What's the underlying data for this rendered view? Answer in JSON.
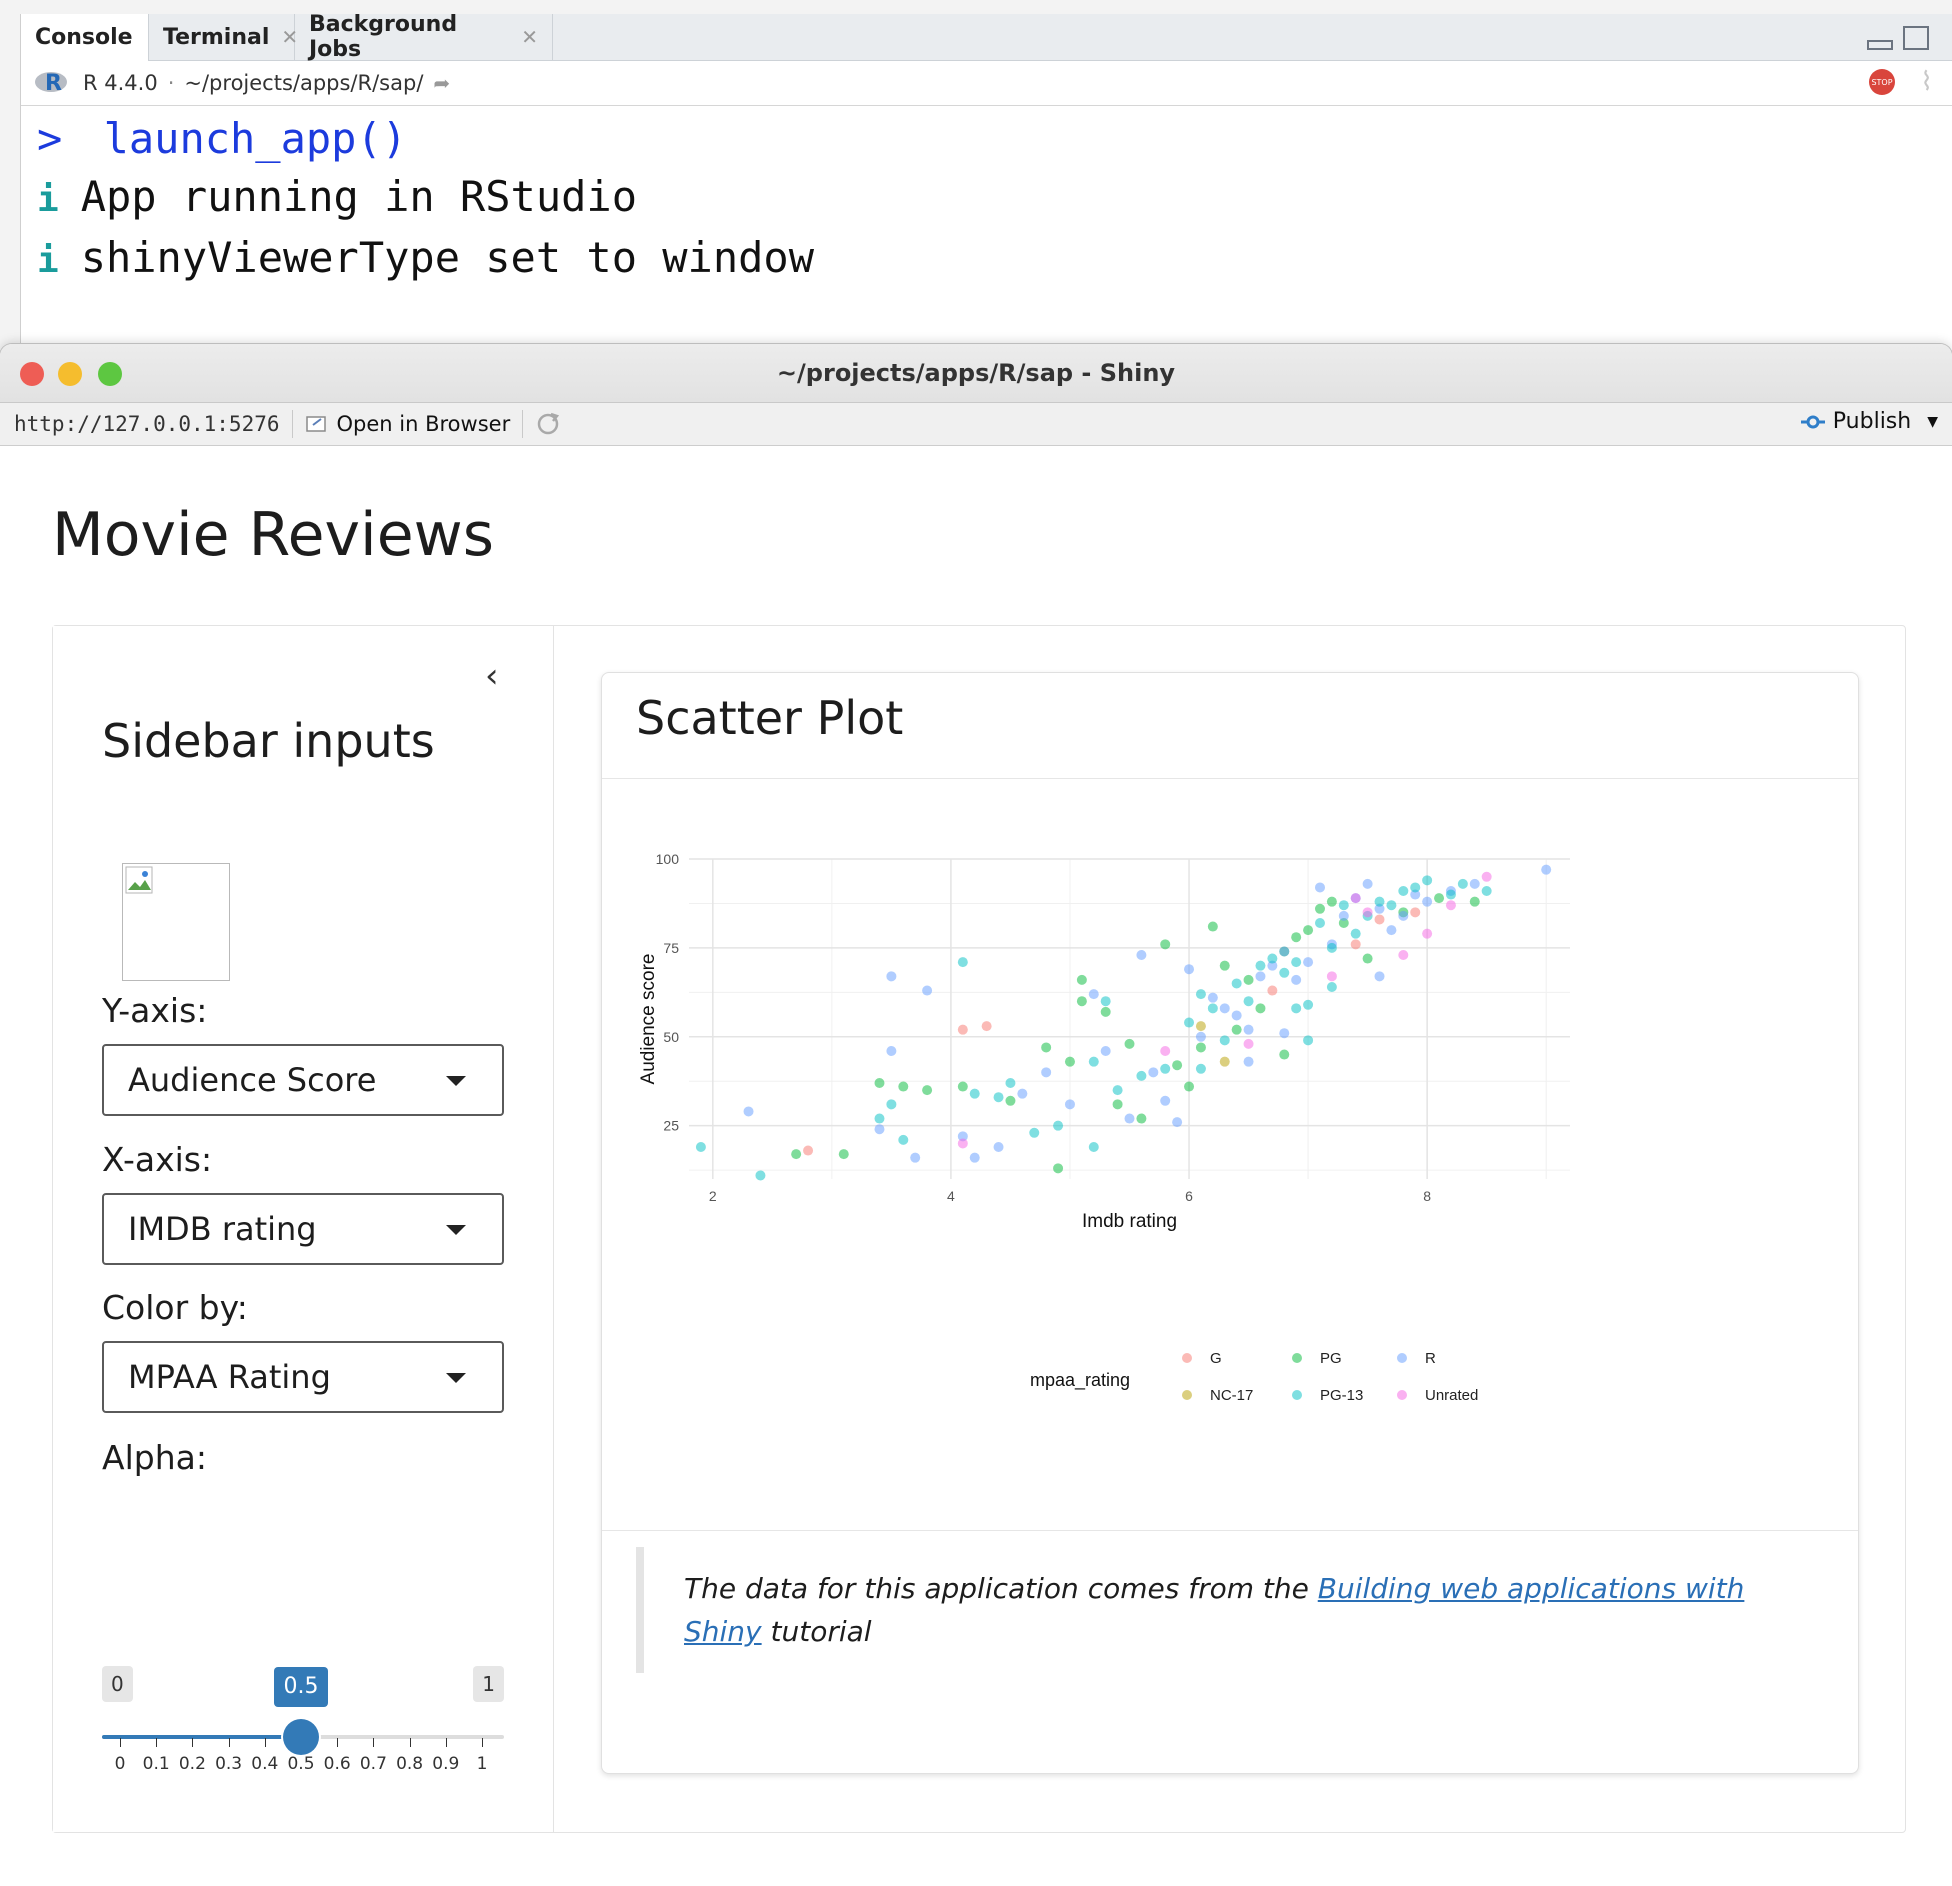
{
  "rstudio": {
    "tabs": [
      {
        "label": "Console",
        "closable": false,
        "active": true
      },
      {
        "label": "Terminal",
        "closable": true,
        "active": false
      },
      {
        "label": "Background Jobs",
        "closable": true,
        "active": false
      }
    ],
    "r_version": "R 4.4.0",
    "separator": "·",
    "working_dir": "~/projects/apps/R/sap/",
    "stop_label": "STOP",
    "console_lines": [
      {
        "kind": "command",
        "prompt": ">",
        "text": "launch_app()"
      },
      {
        "kind": "info",
        "prefix": "i",
        "text": "App running in RStudio"
      },
      {
        "kind": "info",
        "prefix": "i",
        "text": "shinyViewerType set to window"
      }
    ]
  },
  "shiny_window": {
    "title": "~/projects/apps/R/sap - Shiny",
    "url": "http://127.0.0.1:5276",
    "open_in_browser_label": "Open in Browser",
    "publish_label": "Publish"
  },
  "app": {
    "title": "Movie Reviews",
    "sidebar": {
      "heading": "Sidebar inputs",
      "y_axis": {
        "label": "Y-axis:",
        "value": "Audience Score"
      },
      "x_axis": {
        "label": "X-axis:",
        "value": "IMDB rating"
      },
      "color_by": {
        "label": "Color by:",
        "value": "MPAA Rating"
      },
      "alpha": {
        "label": "Alpha:",
        "min": "0",
        "max": "1",
        "value": "0.5",
        "value_fraction": 0.5,
        "ticks": [
          "0",
          "0.1",
          "0.2",
          "0.3",
          "0.4",
          "0.5",
          "0.6",
          "0.7",
          "0.8",
          "0.9",
          "1"
        ]
      }
    },
    "card": {
      "header": "Scatter Plot",
      "footer_prefix": "The data for this application comes from the ",
      "footer_link": "Building web applications with Shiny",
      "footer_suffix": " tutorial"
    }
  },
  "colors": {
    "G": "#F8766D",
    "NC-17": "#B79F00",
    "PG": "#00BA38",
    "PG-13": "#00BFC4",
    "R": "#619CFF",
    "Unrated": "#F564E3",
    "accent": "#337ab7"
  },
  "chart_data": {
    "type": "scatter",
    "xlabel": "Imdb rating",
    "ylabel": "Audience score",
    "xlim": [
      1.8,
      9.2
    ],
    "ylim": [
      10,
      100
    ],
    "xticks": [
      2,
      4,
      6,
      8
    ],
    "yticks": [
      25,
      50,
      75,
      100
    ],
    "grid": true,
    "alpha": 0.5,
    "legend": {
      "title": "mpaa_rating",
      "position": "bottom",
      "entries": [
        "G",
        "PG",
        "R",
        "NC-17",
        "PG-13",
        "Unrated"
      ]
    },
    "series": [
      {
        "name": "G",
        "points": [
          [
            2.8,
            18
          ],
          [
            4.1,
            52
          ],
          [
            4.3,
            53
          ],
          [
            7.6,
            83
          ],
          [
            7.9,
            85
          ],
          [
            7.4,
            76
          ],
          [
            6.7,
            63
          ]
        ]
      },
      {
        "name": "PG",
        "points": [
          [
            2.7,
            17
          ],
          [
            3.1,
            17
          ],
          [
            3.4,
            37
          ],
          [
            3.6,
            36
          ],
          [
            3.8,
            35
          ],
          [
            4.1,
            36
          ],
          [
            4.5,
            32
          ],
          [
            4.8,
            47
          ],
          [
            4.9,
            13
          ],
          [
            5.1,
            66
          ],
          [
            5.1,
            60
          ],
          [
            5.3,
            57
          ],
          [
            5.5,
            48
          ],
          [
            5.6,
            27
          ],
          [
            5.8,
            76
          ],
          [
            5.9,
            42
          ],
          [
            6.1,
            47
          ],
          [
            6.2,
            81
          ],
          [
            6.3,
            70
          ],
          [
            6.5,
            66
          ],
          [
            6.6,
            58
          ],
          [
            6.8,
            74
          ],
          [
            6.9,
            78
          ],
          [
            7.0,
            80
          ],
          [
            7.1,
            86
          ],
          [
            7.3,
            82
          ],
          [
            7.5,
            72
          ],
          [
            7.8,
            85
          ],
          [
            8.1,
            89
          ],
          [
            8.4,
            88
          ],
          [
            6.4,
            52
          ],
          [
            6.0,
            36
          ],
          [
            5.4,
            31
          ],
          [
            5.0,
            43
          ],
          [
            6.8,
            45
          ],
          [
            7.2,
            88
          ]
        ]
      },
      {
        "name": "R",
        "points": [
          [
            2.3,
            29
          ],
          [
            3.4,
            24
          ],
          [
            3.5,
            67
          ],
          [
            3.5,
            46
          ],
          [
            3.7,
            16
          ],
          [
            3.8,
            63
          ],
          [
            4.1,
            22
          ],
          [
            4.2,
            16
          ],
          [
            4.4,
            19
          ],
          [
            4.6,
            34
          ],
          [
            4.8,
            40
          ],
          [
            5.0,
            31
          ],
          [
            5.2,
            62
          ],
          [
            5.3,
            46
          ],
          [
            5.5,
            27
          ],
          [
            5.6,
            73
          ],
          [
            5.7,
            40
          ],
          [
            5.8,
            32
          ],
          [
            6.0,
            69
          ],
          [
            6.1,
            50
          ],
          [
            6.2,
            61
          ],
          [
            6.3,
            58
          ],
          [
            6.4,
            56
          ],
          [
            6.5,
            52
          ],
          [
            6.6,
            67
          ],
          [
            6.7,
            70
          ],
          [
            6.8,
            74
          ],
          [
            6.9,
            66
          ],
          [
            7.0,
            71
          ],
          [
            7.1,
            92
          ],
          [
            7.2,
            76
          ],
          [
            7.3,
            84
          ],
          [
            7.4,
            89
          ],
          [
            7.5,
            93
          ],
          [
            7.6,
            86
          ],
          [
            7.7,
            80
          ],
          [
            7.8,
            84
          ],
          [
            7.9,
            90
          ],
          [
            8.0,
            88
          ],
          [
            8.2,
            91
          ],
          [
            8.4,
            93
          ],
          [
            9.0,
            97
          ],
          [
            7.6,
            67
          ],
          [
            5.9,
            26
          ],
          [
            6.5,
            43
          ],
          [
            6.8,
            51
          ]
        ]
      },
      {
        "name": "NC-17",
        "points": [
          [
            6.1,
            53
          ],
          [
            6.3,
            43
          ]
        ]
      },
      {
        "name": "PG-13",
        "points": [
          [
            1.9,
            19
          ],
          [
            2.4,
            11
          ],
          [
            3.5,
            31
          ],
          [
            3.4,
            27
          ],
          [
            3.6,
            21
          ],
          [
            4.1,
            71
          ],
          [
            4.2,
            34
          ],
          [
            4.4,
            33
          ],
          [
            4.5,
            37
          ],
          [
            4.7,
            23
          ],
          [
            4.9,
            25
          ],
          [
            5.2,
            43
          ],
          [
            5.3,
            60
          ],
          [
            5.4,
            35
          ],
          [
            5.6,
            39
          ],
          [
            5.8,
            41
          ],
          [
            6.0,
            54
          ],
          [
            6.1,
            62
          ],
          [
            6.2,
            58
          ],
          [
            6.3,
            49
          ],
          [
            6.4,
            65
          ],
          [
            6.5,
            60
          ],
          [
            6.6,
            70
          ],
          [
            6.7,
            72
          ],
          [
            6.8,
            68
          ],
          [
            6.9,
            71
          ],
          [
            7.0,
            59
          ],
          [
            7.1,
            82
          ],
          [
            7.2,
            75
          ],
          [
            7.3,
            87
          ],
          [
            7.4,
            79
          ],
          [
            7.5,
            84
          ],
          [
            7.6,
            88
          ],
          [
            7.7,
            87
          ],
          [
            7.8,
            91
          ],
          [
            7.9,
            92
          ],
          [
            8.0,
            94
          ],
          [
            8.2,
            90
          ],
          [
            8.3,
            93
          ],
          [
            8.5,
            91
          ],
          [
            7.0,
            49
          ],
          [
            7.2,
            64
          ],
          [
            6.1,
            41
          ],
          [
            5.2,
            19
          ],
          [
            6.9,
            58
          ]
        ]
      },
      {
        "name": "Unrated",
        "points": [
          [
            4.1,
            20
          ],
          [
            5.8,
            46
          ],
          [
            7.4,
            89
          ],
          [
            7.5,
            85
          ],
          [
            7.8,
            73
          ],
          [
            8.0,
            79
          ],
          [
            8.2,
            87
          ],
          [
            8.5,
            95
          ],
          [
            7.2,
            67
          ],
          [
            6.5,
            48
          ]
        ]
      }
    ]
  }
}
